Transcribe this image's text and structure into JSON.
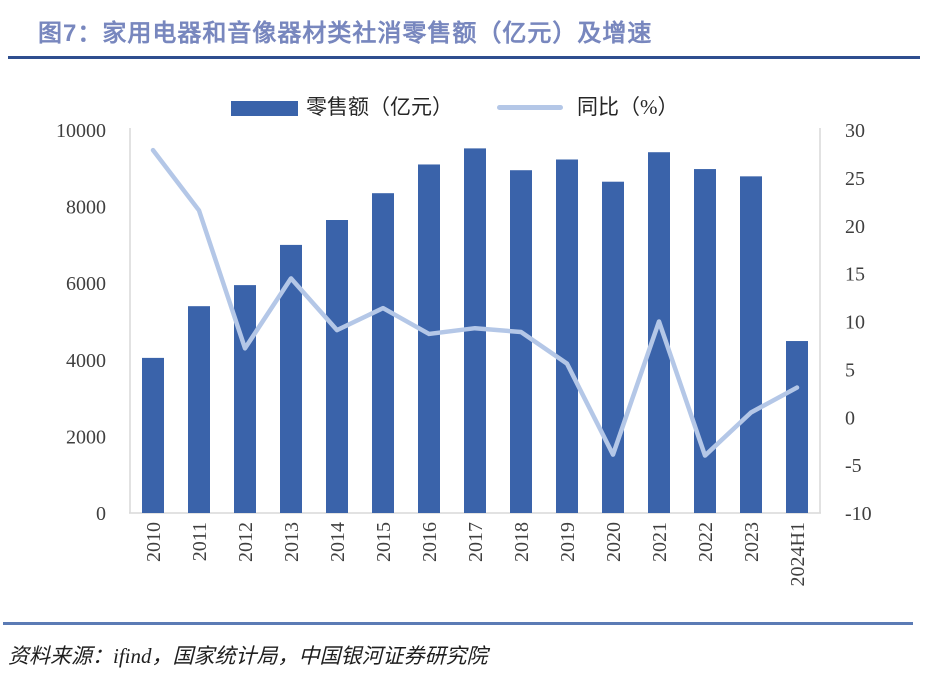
{
  "title": "图7：家用电器和音像器材类社消零售额（亿元）及增速",
  "legend": {
    "bar_label": "零售额（亿元）",
    "line_label": "同比（%）"
  },
  "source_note": "资料来源：ifind，国家统计局，中国银河证券研究院",
  "colors": {
    "bar": "#3A63AA",
    "line": "#B4C7E7",
    "title": "#7887BE",
    "title_underline": "#2E4E8F",
    "footer_divider": "#5B7BB5",
    "axis_line": "#D9D9D9",
    "axis_text": "#3F3F3F"
  },
  "chart_data": {
    "type": "combo",
    "title": "图7：家用电器和音像器材类社消零售额（亿元）及增速",
    "categories": [
      "2010",
      "2011",
      "2012",
      "2013",
      "2014",
      "2015",
      "2016",
      "2017",
      "2018",
      "2019",
      "2020",
      "2021",
      "2022",
      "2023",
      "2024H1"
    ],
    "series": [
      {
        "name": "零售额（亿元）",
        "type": "bar",
        "y_axis": "left",
        "color": "#3A63AA",
        "values": [
          4050,
          5400,
          5950,
          7000,
          7650,
          8350,
          9100,
          9520,
          8950,
          9230,
          8650,
          9420,
          8980,
          8790,
          4490
        ]
      },
      {
        "name": "同比（%）",
        "type": "line",
        "y_axis": "right",
        "color": "#B4C7E7",
        "values": [
          27.9,
          21.6,
          7.2,
          14.5,
          9.1,
          11.4,
          8.7,
          9.3,
          8.9,
          5.6,
          -3.9,
          10.0,
          -4.0,
          0.5,
          3.1
        ]
      }
    ],
    "left_axis": {
      "min": 0,
      "max": 10000,
      "tick_step": 2000,
      "ticks": [
        0,
        2000,
        4000,
        6000,
        8000,
        10000
      ]
    },
    "right_axis": {
      "min": -10,
      "max": 30,
      "tick_step": 5,
      "ticks": [
        -10,
        -5,
        0,
        5,
        10,
        15,
        20,
        25,
        30
      ]
    },
    "grid": false,
    "legend_position": "top",
    "x_tick_rotation": 90
  }
}
